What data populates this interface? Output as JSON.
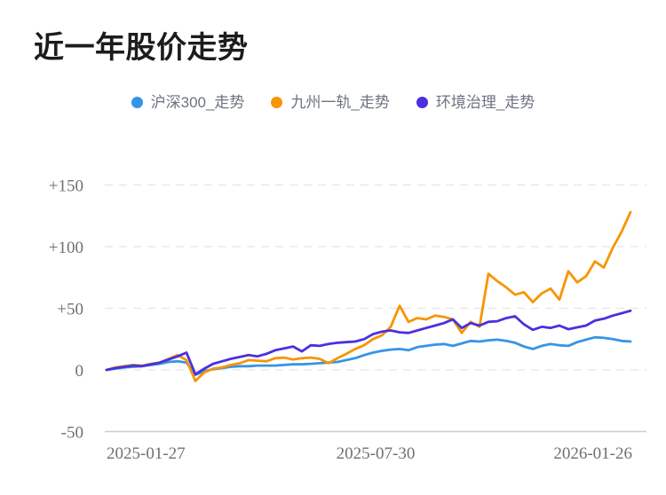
{
  "page": {
    "title": "近一年股价走势"
  },
  "colors": {
    "background": "#ffffff",
    "title_text": "#1c1c1c",
    "legend_text": "#6c7380",
    "tick_text": "#6f6f6f",
    "gridline": "#e5e5e5",
    "axis_line": "#cdcdcd",
    "series_blue": "#3694e7",
    "series_orange": "#f79502",
    "series_purple": "#4a30df"
  },
  "chart_data": {
    "type": "line",
    "title": "近一年股价走势",
    "xlabel": "",
    "ylabel": "",
    "x_start_date": "2025-01-27",
    "x_end_date": "2026-01-26",
    "x_tick_labels": [
      "2025-01-27",
      "2025-07-30",
      "2026-01-26"
    ],
    "y_ticks": [
      {
        "label": "+150",
        "value": 150
      },
      {
        "label": "+100",
        "value": 100
      },
      {
        "label": "+50",
        "value": 50
      },
      {
        "label": "0",
        "value": 0
      },
      {
        "label": "-50",
        "value": -50
      }
    ],
    "ylim": [
      -50,
      150
    ],
    "grid": "horizontal-dashed",
    "legend_position": "top-center",
    "series": [
      {
        "name": "沪深300_走势",
        "color": "#3694e7",
        "values": [
          0,
          1,
          2,
          2.5,
          3,
          4,
          5,
          6.5,
          7,
          6,
          -4,
          -1,
          0.5,
          1.5,
          2.5,
          3,
          3,
          3.5,
          3.5,
          3.5,
          4,
          4.5,
          4.5,
          5,
          5.5,
          6,
          6.5,
          8,
          9.5,
          12,
          14,
          15.5,
          16.5,
          17,
          16,
          18.5,
          19.5,
          20.5,
          21,
          19.5,
          21.5,
          23.5,
          23,
          24,
          24.5,
          23.5,
          22,
          19,
          17,
          19.5,
          21,
          20,
          19.5,
          22.5,
          24.5,
          26.5,
          26,
          25,
          23.5,
          23
        ]
      },
      {
        "name": "九州一轨_走势",
        "color": "#f79502",
        "values": [
          0,
          2,
          3,
          4,
          3.5,
          5,
          6,
          9,
          12,
          8,
          -9,
          -2,
          1,
          2,
          4,
          5.5,
          8,
          7.5,
          7,
          9.5,
          10,
          8.5,
          9.5,
          10,
          9,
          5.5,
          9.5,
          13,
          17,
          20,
          25,
          28,
          35,
          52,
          39,
          42,
          41,
          44,
          43,
          41,
          30,
          39,
          35,
          78,
          72,
          67,
          61,
          63,
          55,
          62,
          66,
          57,
          80,
          71,
          76,
          88,
          83,
          99,
          112,
          128
        ]
      },
      {
        "name": "环境治理_走势",
        "color": "#4a30df",
        "values": [
          0,
          1.5,
          2.5,
          3.5,
          3,
          4.5,
          6,
          8.5,
          11,
          14,
          -3.5,
          1,
          5,
          7,
          9,
          10.5,
          12,
          11,
          13,
          16,
          17.5,
          19,
          15,
          20,
          19.5,
          21,
          22,
          22.5,
          23,
          25,
          29,
          31,
          32,
          30.5,
          30,
          32,
          34,
          36,
          38,
          41,
          34,
          38,
          36,
          39,
          39.5,
          42,
          43.5,
          37,
          32.5,
          35,
          34,
          36,
          33,
          34.5,
          36,
          40,
          41.5,
          44,
          46,
          48
        ]
      }
    ]
  }
}
